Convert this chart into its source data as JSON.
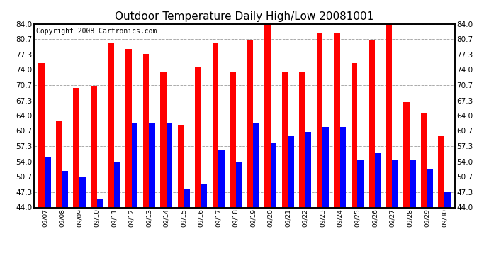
{
  "title": "Outdoor Temperature Daily High/Low 20081001",
  "copyright": "Copyright 2008 Cartronics.com",
  "dates": [
    "09/07",
    "09/08",
    "09/09",
    "09/10",
    "09/11",
    "09/12",
    "09/13",
    "09/14",
    "09/15",
    "09/16",
    "09/17",
    "09/18",
    "09/19",
    "09/20",
    "09/21",
    "09/22",
    "09/23",
    "09/24",
    "09/25",
    "09/26",
    "09/27",
    "09/28",
    "09/29",
    "09/30"
  ],
  "highs": [
    75.5,
    63.0,
    70.0,
    70.5,
    80.0,
    78.5,
    77.5,
    73.5,
    62.0,
    74.5,
    80.0,
    73.5,
    80.5,
    84.5,
    73.5,
    73.5,
    82.0,
    82.0,
    75.5,
    80.5,
    84.5,
    67.0,
    64.5,
    59.5
  ],
  "lows": [
    55.0,
    52.0,
    50.5,
    46.0,
    54.0,
    62.5,
    62.5,
    62.5,
    48.0,
    49.0,
    56.5,
    54.0,
    62.5,
    58.0,
    59.5,
    60.5,
    61.5,
    61.5,
    54.5,
    56.0,
    54.5,
    54.5,
    52.5,
    47.5
  ],
  "ylim_min": 44.0,
  "ylim_max": 84.0,
  "yticks": [
    44.0,
    47.3,
    50.7,
    54.0,
    57.3,
    60.7,
    64.0,
    67.3,
    70.7,
    74.0,
    77.3,
    80.7,
    84.0
  ],
  "bar_width": 0.35,
  "high_color": "#ff0000",
  "low_color": "#0000ff",
  "bg_color": "#ffffff",
  "grid_color": "#aaaaaa",
  "title_fontsize": 11,
  "copyright_fontsize": 7,
  "tick_fontsize": 7.5,
  "xtick_fontsize": 6.5
}
